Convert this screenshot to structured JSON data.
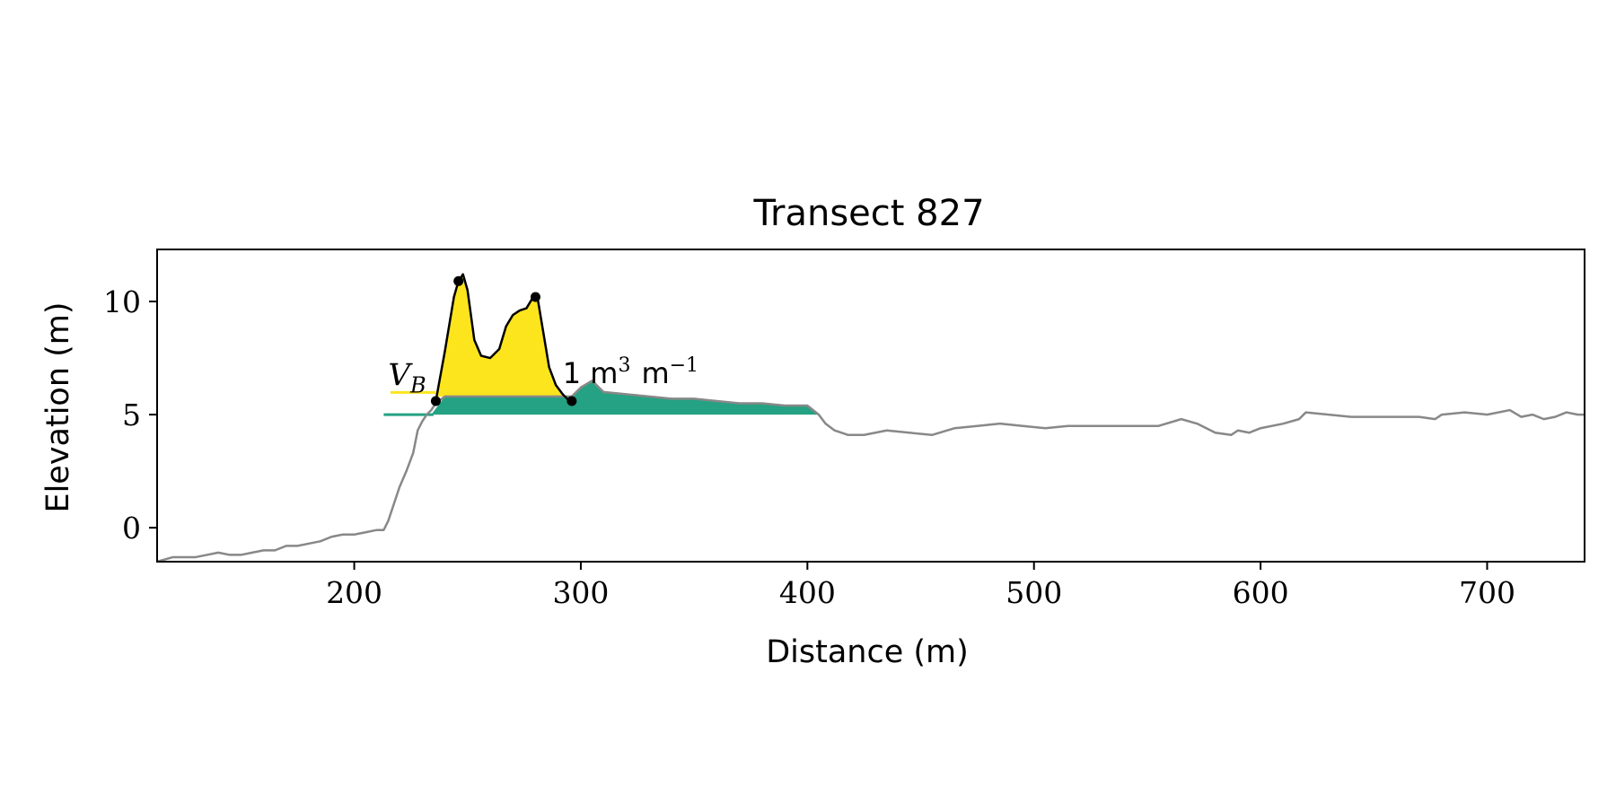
{
  "chart_data": {
    "type": "area",
    "title": "Transect 827",
    "xlabel": "Distance (m)",
    "ylabel": "Elevation (m)",
    "xlim": [
      113,
      743
    ],
    "ylim": [
      -1.5,
      12.3
    ],
    "xticks": [
      200,
      300,
      400,
      500,
      600,
      700
    ],
    "yticks": [
      0,
      5,
      10
    ],
    "grid": false,
    "series": [
      {
        "type": "line",
        "color": "#888888",
        "x": [
          113,
          120,
          130,
          135,
          140,
          145,
          150,
          155,
          160,
          165,
          170,
          175,
          180,
          185,
          190,
          195,
          200,
          205,
          210,
          213,
          215,
          218,
          220,
          223,
          226,
          228,
          230,
          232,
          234,
          236,
          240,
          250,
          260,
          270,
          280,
          290,
          296,
          300,
          305,
          310,
          320,
          330,
          340,
          350,
          360,
          370,
          380,
          390,
          400,
          405,
          408,
          412,
          418,
          425,
          435,
          445,
          455,
          465,
          475,
          485,
          495,
          505,
          515,
          525,
          535,
          545,
          555,
          565,
          572,
          580,
          587,
          590,
          595,
          600,
          610,
          617,
          620,
          630,
          640,
          650,
          660,
          670,
          677,
          680,
          690,
          700,
          710,
          715,
          720,
          725,
          730,
          735,
          740,
          743
        ],
        "y": [
          -1.5,
          -1.3,
          -1.3,
          -1.2,
          -1.1,
          -1.2,
          -1.2,
          -1.1,
          -1.0,
          -1.0,
          -0.8,
          -0.8,
          -0.7,
          -0.6,
          -0.4,
          -0.3,
          -0.3,
          -0.2,
          -0.1,
          -0.1,
          0.3,
          1.2,
          1.8,
          2.5,
          3.3,
          4.3,
          4.7,
          5.0,
          5.2,
          5.5,
          5.8,
          5.8,
          5.8,
          5.8,
          5.8,
          5.8,
          5.8,
          6.2,
          6.5,
          6.0,
          5.9,
          5.8,
          5.7,
          5.7,
          5.6,
          5.5,
          5.5,
          5.4,
          5.4,
          5.0,
          4.6,
          4.3,
          4.1,
          4.1,
          4.3,
          4.2,
          4.1,
          4.4,
          4.5,
          4.6,
          4.5,
          4.4,
          4.5,
          4.5,
          4.5,
          4.5,
          4.5,
          4.8,
          4.6,
          4.2,
          4.1,
          4.3,
          4.2,
          4.4,
          4.6,
          4.8,
          5.1,
          5.0,
          4.9,
          4.9,
          4.9,
          4.9,
          4.8,
          5.0,
          5.1,
          5.0,
          5.2,
          4.9,
          5.0,
          4.8,
          4.9,
          5.1,
          5.0,
          5.0
        ]
      },
      {
        "type": "area",
        "color": "#24a283",
        "baseline": 5.0,
        "x": [
          234,
          240,
          250,
          260,
          270,
          280,
          290,
          296,
          300,
          305,
          310,
          320,
          330,
          340,
          350,
          360,
          370,
          380,
          390,
          400,
          405
        ],
        "y": [
          5.0,
          5.8,
          5.8,
          5.8,
          5.8,
          5.8,
          5.8,
          5.8,
          6.2,
          6.5,
          6.0,
          5.9,
          5.8,
          5.7,
          5.7,
          5.6,
          5.5,
          5.5,
          5.4,
          5.4,
          5.0
        ]
      },
      {
        "type": "area",
        "color": "#fde51e",
        "baseline": 5.8,
        "x": [
          236,
          240,
          244,
          246,
          248,
          250,
          253,
          256,
          260,
          264,
          267,
          270,
          273,
          276,
          279,
          281,
          283,
          286,
          289,
          292,
          295
        ],
        "y": [
          5.6,
          7.8,
          10.2,
          10.9,
          11.2,
          10.5,
          8.3,
          7.6,
          7.5,
          7.9,
          8.9,
          9.4,
          9.6,
          9.7,
          10.2,
          10.1,
          8.9,
          7.1,
          6.3,
          5.9,
          5.6
        ]
      },
      {
        "type": "line",
        "color": "#000000",
        "x": [
          236,
          240,
          244,
          246,
          248,
          250,
          253,
          256,
          260,
          264,
          267,
          270,
          273,
          276,
          279,
          281,
          283,
          286,
          289,
          292,
          295
        ],
        "y": [
          5.6,
          7.8,
          10.2,
          10.9,
          11.2,
          10.5,
          8.3,
          7.6,
          7.5,
          7.9,
          8.9,
          9.4,
          9.6,
          9.7,
          10.2,
          10.1,
          8.9,
          7.1,
          6.3,
          5.9,
          5.6
        ]
      },
      {
        "type": "scatter",
        "color": "#000000",
        "x": [
          236,
          246,
          280,
          296
        ],
        "y": [
          5.6,
          10.9,
          10.2,
          5.6
        ]
      }
    ],
    "reference_lines": [
      {
        "color": "#fde51e",
        "x": [
          216,
          236
        ],
        "y": 5.98
      },
      {
        "color": "#24a283",
        "x": [
          213,
          235
        ],
        "y": 5.0
      }
    ],
    "annotations": [
      {
        "text": "V",
        "subscript": "B",
        "x": 215,
        "y": 6.3
      },
      {
        "text": "1 m",
        "sup1": "3",
        "mid": "m",
        "sup2": "−1",
        "x": 292,
        "y": 6.4
      }
    ]
  }
}
